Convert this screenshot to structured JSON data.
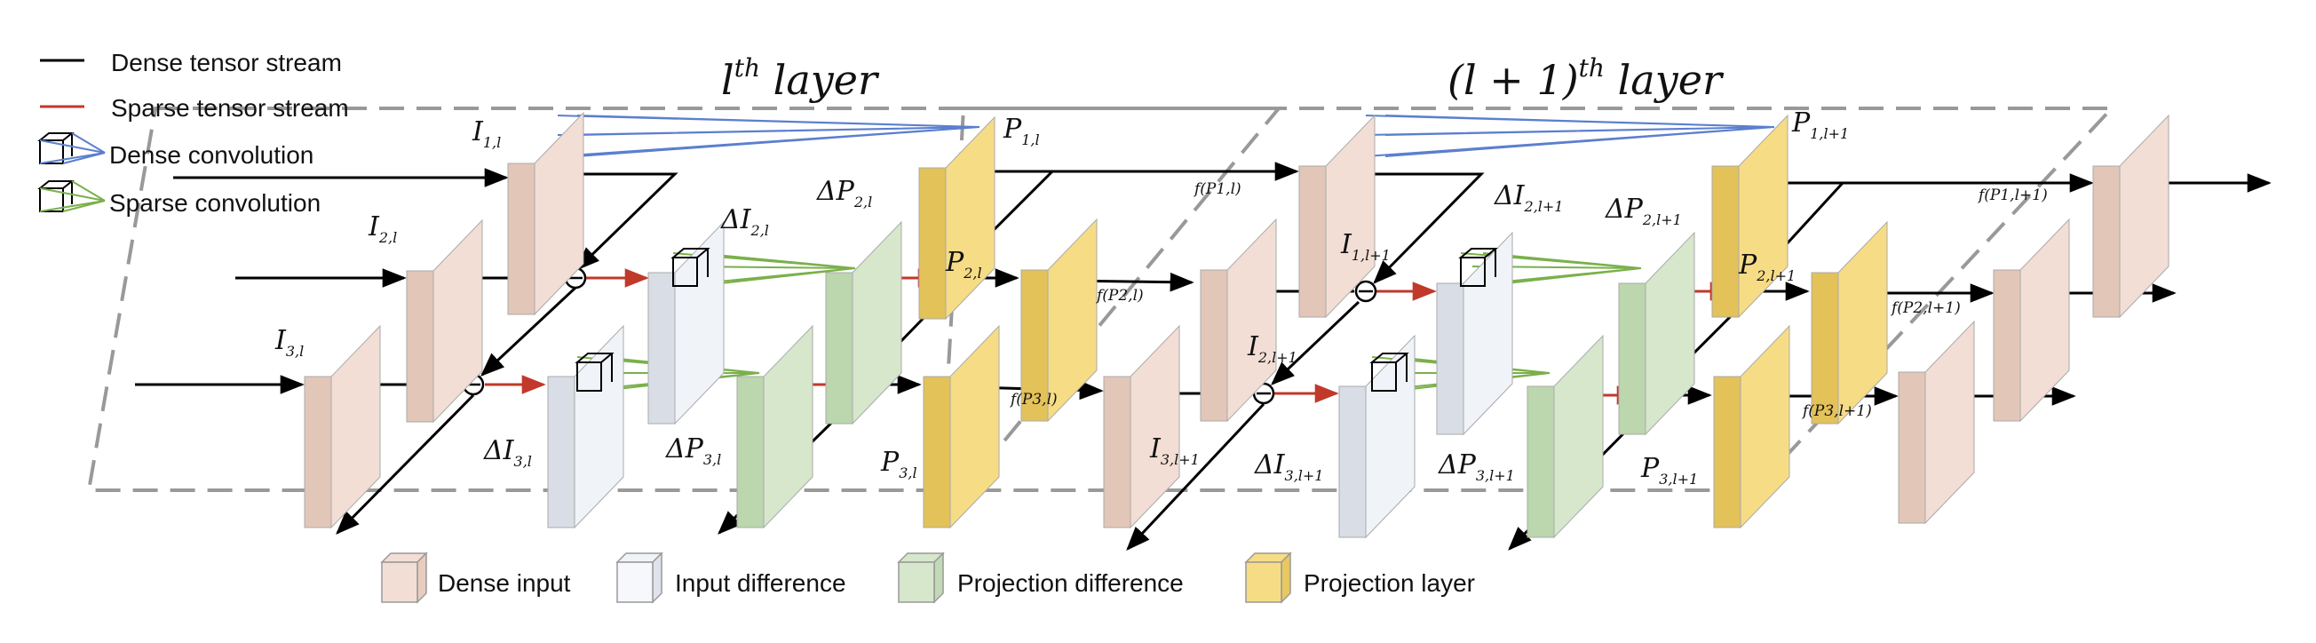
{
  "layer_titles": {
    "layer1": {
      "base": "l",
      "sup": "th",
      "rest": " layer"
    },
    "layer2": {
      "base": "(l + 1)",
      "sup": "th",
      "rest": " layer"
    }
  },
  "legend_top": {
    "dense_stream": "Dense tensor stream",
    "sparse_stream": "Sparse tensor stream",
    "dense_conv": "Dense convolution",
    "sparse_conv": "Sparse convolution"
  },
  "legend_bottom": {
    "dense_input": "Dense input",
    "input_difference": "Input difference",
    "projection_difference": "Projection difference",
    "projection_layer": "Projection layer"
  },
  "labels": {
    "I1l": {
      "main": "I",
      "sub": "1,l"
    },
    "I2l": {
      "main": "I",
      "sub": "2,l"
    },
    "I3l": {
      "main": "I",
      "sub": "3,l"
    },
    "dI2l": {
      "main": "ΔI",
      "sub": "2,l"
    },
    "dI3l": {
      "main": "ΔI",
      "sub": "3,l"
    },
    "dP2l": {
      "main": "ΔP",
      "sub": "2,l"
    },
    "dP3l": {
      "main": "ΔP",
      "sub": "3,l"
    },
    "P1l": {
      "main": "P",
      "sub": "1,l"
    },
    "P2l": {
      "main": "P",
      "sub": "2,l"
    },
    "P3l": {
      "main": "P",
      "sub": "3,l"
    },
    "I1l1": {
      "main": "I",
      "sub": "1,l+1"
    },
    "I2l1": {
      "main": "I",
      "sub": "2,l+1"
    },
    "I3l1": {
      "main": "I",
      "sub": "3,l+1"
    },
    "dI2l1": {
      "main": "ΔI",
      "sub": "2,l+1"
    },
    "dI3l1": {
      "main": "ΔI",
      "sub": "3,l+1"
    },
    "dP2l1": {
      "main": "ΔP",
      "sub": "2,l+1"
    },
    "dP3l1": {
      "main": "ΔP",
      "sub": "3,l+1"
    },
    "P1l1": {
      "main": "P",
      "sub": "1,l+1"
    },
    "P2l1": {
      "main": "P",
      "sub": "2,l+1"
    },
    "P3l1": {
      "main": "P",
      "sub": "3,l+1"
    }
  },
  "func_labels": {
    "fP1l": "f(P1,l)",
    "fP2l": "f(P2,l)",
    "fP3l": "f(P3,l)",
    "fP1l1": "f(P1,l+1)",
    "fP2l1": "f(P2,l+1)",
    "fP3l1": "f(P3,l+1)"
  },
  "colors": {
    "dense_input": "#f2ded4",
    "input_difference": "#f0f3f8",
    "projection_difference": "#d6e7cc",
    "projection_layer": "#f7dc86",
    "dense_stream": "#000000",
    "sparse_stream": "#c0392b",
    "dense_conv": "#5b7fcf",
    "sparse_conv": "#7ab04a",
    "layer_border": "#999999"
  }
}
